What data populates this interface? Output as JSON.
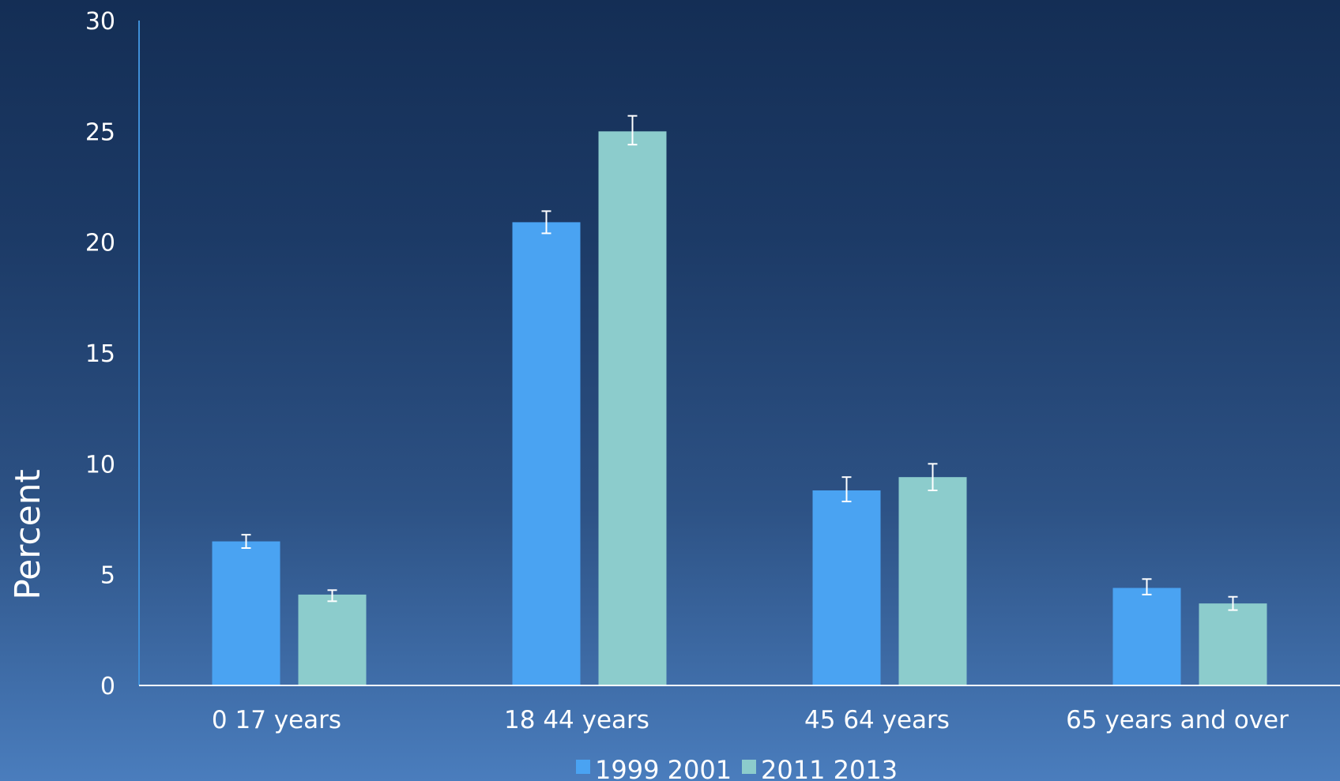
{
  "chart_data": {
    "type": "bar",
    "title": "",
    "xlabel": "",
    "ylabel": "Percent",
    "ylim": [
      0,
      30
    ],
    "yticks": [
      0,
      5,
      10,
      15,
      20,
      25,
      30
    ],
    "grid": false,
    "legend_position": "bottom",
    "categories": [
      "0 17 years",
      "18 44 years",
      "45 64 years",
      "65 years and over"
    ],
    "series": [
      {
        "name": "1999 2001",
        "color": "#4aa3f2",
        "values": [
          6.5,
          20.9,
          8.8,
          4.4
        ],
        "error_low": [
          6.2,
          20.4,
          8.3,
          4.1
        ],
        "error_high": [
          6.8,
          21.4,
          9.4,
          4.8
        ]
      },
      {
        "name": "2011 2013",
        "color": "#8ccccc",
        "values": [
          4.1,
          25.0,
          9.4,
          3.7
        ],
        "error_low": [
          3.8,
          24.4,
          8.8,
          3.4
        ],
        "error_high": [
          4.3,
          25.7,
          10.0,
          4.0
        ]
      }
    ],
    "axis_color": "#3f8fd8",
    "baseline_color": "#ffffff",
    "error_bar_color": "#ffffff"
  }
}
